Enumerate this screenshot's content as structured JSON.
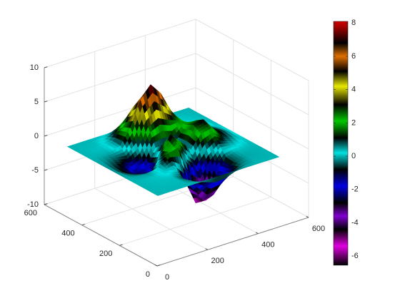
{
  "chart_data": {
    "type": "surface",
    "x": [
      10,
      90,
      130,
      170,
      210,
      250,
      290,
      330,
      370,
      410,
      490
    ],
    "y": [
      10,
      90,
      130,
      170,
      210,
      250,
      290,
      330,
      370,
      410,
      490
    ],
    "z": [
      [
        0,
        0,
        0,
        0,
        0,
        0,
        0,
        0,
        0,
        0,
        0
      ],
      [
        0,
        0.05,
        0.05,
        -0.59,
        -2.64,
        -4.75,
        -4.34,
        -2.1,
        -0.53,
        -0.06,
        0
      ],
      [
        0,
        0.08,
        0.33,
        0.15,
        -2.19,
        -5.68,
        -5.76,
        -2.64,
        -0.44,
        0.04,
        0
      ],
      [
        0,
        -0.13,
        0.3,
        1.86,
        2.23,
        -0.72,
        -2.22,
        -0.27,
        0.88,
        0.5,
        0
      ],
      [
        0,
        -0.8,
        -1.21,
        0.8,
        3.55,
        2,
        0.39,
        2.2,
        2.56,
        1.12,
        0
      ],
      [
        0,
        -1.33,
        -2.77,
        -1.65,
        1.48,
        0.98,
        0.38,
        2.94,
        3.27,
        1.41,
        0
      ],
      [
        0,
        -1.12,
        -2.49,
        -2,
        0.39,
        0.46,
        0.38,
        2.38,
        2.56,
        1.09,
        0
      ],
      [
        0,
        -0.48,
        -0.86,
        0.23,
        2.79,
        3.69,
        2.94,
        2.43,
        1.58,
        0.58,
        0
      ],
      [
        0,
        -0.01,
        0.48,
        2.61,
        6.2,
        8,
        6.25,
        3.26,
        1.19,
        0.29,
        0
      ],
      [
        0,
        0.08,
        0.55,
        2.09,
        4.55,
        5.85,
        4.56,
        2.21,
        0.68,
        0.13,
        0
      ],
      [
        0,
        0,
        0,
        0,
        0,
        0,
        0,
        0,
        0,
        0,
        0
      ]
    ],
    "xlim": [
      0,
      600
    ],
    "ylim": [
      0,
      600
    ],
    "zlim": [
      -10,
      10
    ],
    "xticks": [
      0,
      200,
      400,
      600
    ],
    "yticks": [
      0,
      200,
      400,
      600
    ],
    "zticks": [
      -10,
      -5,
      0,
      5,
      10
    ],
    "grid": true,
    "colorbar": {
      "clim": [
        -6.55,
        8.1
      ],
      "ticks": [
        -6,
        -4,
        -2,
        0,
        2,
        4,
        6,
        8
      ]
    },
    "colormap": [
      {
        "value": 8.1,
        "color": "#d80000"
      },
      {
        "value": 6.8,
        "color": "#000000"
      },
      {
        "value": 6.0,
        "color": "#e07000"
      },
      {
        "value": 5.1,
        "color": "#000000"
      },
      {
        "value": 4.2,
        "color": "#e8e800"
      },
      {
        "value": 3.1,
        "color": "#000000"
      },
      {
        "value": 2.1,
        "color": "#00c800"
      },
      {
        "value": 1.1,
        "color": "#000000"
      },
      {
        "value": 0.2,
        "color": "#00e0e0"
      },
      {
        "value": -0.8,
        "color": "#000000"
      },
      {
        "value": -1.8,
        "color": "#0000e0"
      },
      {
        "value": -2.8,
        "color": "#000000"
      },
      {
        "value": -3.6,
        "color": "#8000d0"
      },
      {
        "value": -4.4,
        "color": "#000000"
      },
      {
        "value": -5.4,
        "color": "#e000e0"
      },
      {
        "value": -6.55,
        "color": "#000000"
      }
    ]
  }
}
